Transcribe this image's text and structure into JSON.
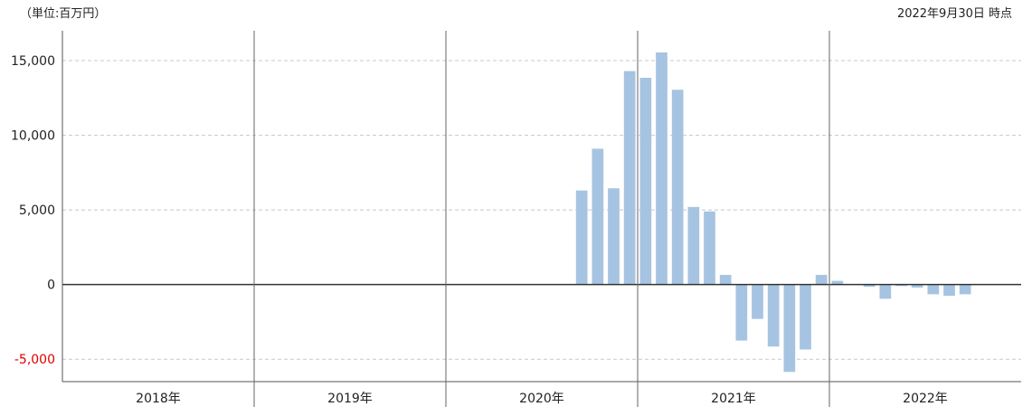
{
  "header": {
    "unit_label": "（単位:百万円）",
    "as_of_label": "2022年9月30日 時点"
  },
  "chart_data": {
    "type": "bar",
    "ylim": [
      -6500,
      17000
    ],
    "yticks": [
      15000,
      10000,
      5000,
      0,
      -5000
    ],
    "ytick_labels": [
      "15,000",
      "10,000",
      "5,000",
      "0",
      "-5,000"
    ],
    "negative_tick_color": "#e00000",
    "bar_color": "#a6c4e2",
    "grid": "dashed horizontal",
    "years": [
      "2018年",
      "2019年",
      "2020年",
      "2021年",
      "2022年"
    ],
    "points_per_year": 12,
    "series": [
      {
        "values": [
          null,
          null,
          null,
          null,
          null,
          null,
          null,
          null,
          null,
          null,
          null,
          null,
          null,
          null,
          null,
          null,
          null,
          null,
          null,
          null,
          null,
          null,
          null,
          null,
          null,
          null,
          null,
          null,
          null,
          null,
          null,
          null,
          6300,
          9100,
          6450,
          14300,
          13850,
          15550,
          13050,
          5200,
          4900,
          650,
          -3750,
          -2300,
          -4150,
          -5850,
          -4350,
          650,
          250,
          null,
          -150,
          -950,
          -100,
          -200,
          -650,
          -750,
          -650,
          null,
          null,
          null
        ]
      }
    ]
  }
}
